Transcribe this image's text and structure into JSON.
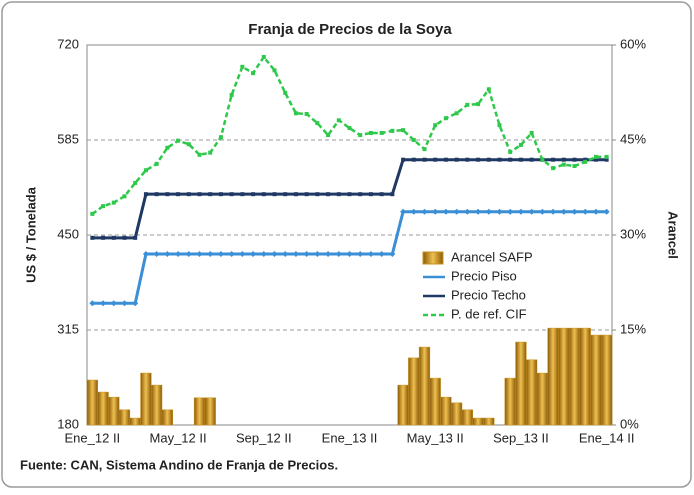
{
  "chart_data": {
    "type": "bar-line",
    "title": "Franja de Precios de la Soya",
    "y_label": "US $ / Tonelada",
    "y2_label": "Arancel",
    "source": "Fuente: CAN, Sistema Andino de Franja de Precios.",
    "categories": [
      "Ene_12 II",
      null,
      null,
      null,
      null,
      null,
      null,
      null,
      "May_12 II",
      null,
      null,
      null,
      null,
      null,
      null,
      null,
      "Sep_12 II",
      null,
      null,
      null,
      null,
      null,
      null,
      null,
      "Ene_13 II",
      null,
      null,
      null,
      null,
      null,
      null,
      null,
      "May_13 II",
      null,
      null,
      null,
      null,
      null,
      null,
      null,
      "Sep_13 II",
      null,
      null,
      null,
      null,
      null,
      null,
      null,
      "Ene_14 II"
    ],
    "ylim": [
      180,
      720
    ],
    "yticks": [
      180,
      315,
      450,
      585,
      720
    ],
    "y2lim": [
      0,
      60
    ],
    "y2ticks": [
      {
        "value": 0,
        "label": "0%"
      },
      {
        "value": 15,
        "label": "15%"
      },
      {
        "value": 30,
        "label": "30%"
      },
      {
        "value": 45,
        "label": "45%"
      },
      {
        "value": 60,
        "label": "60%"
      }
    ],
    "grid": true,
    "series": [
      {
        "name": "Arancel SAFP",
        "type": "bar",
        "axis": "y2",
        "color": "#c8901a",
        "values": [
          7.1,
          5.2,
          4.4,
          2.4,
          1.1,
          8.2,
          6.3,
          2.4,
          0,
          0,
          4.3,
          4.3,
          0,
          0,
          0,
          0,
          0,
          0,
          0,
          0,
          0,
          0,
          0,
          0,
          0,
          0,
          0,
          0,
          0,
          6.3,
          10.6,
          12.3,
          7.4,
          4.4,
          3.5,
          2.4,
          1.1,
          1.1,
          0,
          7.4,
          13.1,
          10.3,
          8.2,
          15.3,
          15.3,
          15.3,
          15.3,
          14.2,
          14.2
        ]
      },
      {
        "name": "Precio Piso",
        "type": "line",
        "color": "#3b8fd6",
        "marker": "diamond",
        "values": [
          353,
          353,
          353,
          353,
          353,
          423,
          423,
          423,
          423,
          423,
          423,
          423,
          423,
          423,
          423,
          423,
          423,
          423,
          423,
          423,
          423,
          423,
          423,
          423,
          423,
          423,
          423,
          423,
          423,
          483,
          483,
          483,
          483,
          483,
          483,
          483,
          483,
          483,
          483,
          483,
          483,
          483,
          483,
          483,
          483,
          483,
          483,
          483,
          483
        ]
      },
      {
        "name": "Precio Techo",
        "type": "line",
        "color": "#1f3864",
        "marker": "square",
        "values": [
          446,
          446,
          446,
          446,
          446,
          508,
          508,
          508,
          508,
          508,
          508,
          508,
          508,
          508,
          508,
          508,
          508,
          508,
          508,
          508,
          508,
          508,
          508,
          508,
          508,
          508,
          508,
          508,
          508,
          557,
          557,
          557,
          557,
          557,
          557,
          557,
          557,
          557,
          557,
          557,
          557,
          557,
          557,
          557,
          557,
          557,
          557,
          557,
          557
        ]
      },
      {
        "name": "P. de ref. CIF",
        "type": "line",
        "color": "#2ec84a",
        "marker": "square",
        "dashed": true,
        "values": [
          480,
          491,
          496,
          505,
          524,
          542,
          551,
          574,
          584,
          579,
          564,
          567,
          589,
          649,
          689,
          680,
          703,
          684,
          652,
          623,
          622,
          609,
          592,
          613,
          602,
          592,
          595,
          595,
          598,
          599,
          585,
          572,
          606,
          616,
          623,
          635,
          636,
          657,
          606,
          568,
          578,
          595,
          557,
          545,
          550,
          548,
          554,
          561,
          561
        ]
      }
    ]
  }
}
